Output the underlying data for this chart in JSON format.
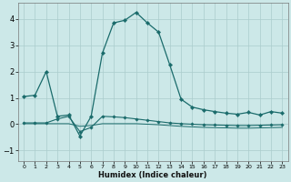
{
  "xlabel": "Humidex (Indice chaleur)",
  "xlim": [
    -0.5,
    23.5
  ],
  "ylim": [
    -1.4,
    4.6
  ],
  "yticks": [
    -1,
    0,
    1,
    2,
    3,
    4
  ],
  "xticks": [
    0,
    1,
    2,
    3,
    4,
    5,
    6,
    7,
    8,
    9,
    10,
    11,
    12,
    13,
    14,
    15,
    16,
    17,
    18,
    19,
    20,
    21,
    22,
    23
  ],
  "background_color": "#cce8e8",
  "grid_color": "#aacccc",
  "line_color": "#1a6b6b",
  "series1_x": [
    0,
    1,
    2,
    3,
    4,
    5,
    6,
    7,
    8,
    9,
    10,
    11,
    12,
    13,
    14,
    15,
    16,
    17,
    18,
    19,
    20,
    21,
    22,
    23
  ],
  "series1_y": [
    1.05,
    1.1,
    2.0,
    0.3,
    0.35,
    -0.45,
    0.3,
    2.7,
    3.85,
    3.95,
    4.25,
    3.85,
    3.5,
    2.25,
    0.95,
    0.65,
    0.55,
    0.48,
    0.42,
    0.38,
    0.45,
    0.35,
    0.48,
    0.42
  ],
  "series2_x": [
    0,
    1,
    2,
    3,
    4,
    5,
    6,
    7,
    8,
    9,
    10,
    11,
    12,
    13,
    14,
    15,
    16,
    17,
    18,
    19,
    20,
    21,
    22,
    23
  ],
  "series2_y": [
    0.05,
    0.05,
    0.05,
    0.2,
    0.3,
    -0.28,
    -0.12,
    0.3,
    0.28,
    0.25,
    0.2,
    0.15,
    0.1,
    0.05,
    0.02,
    0.0,
    -0.02,
    -0.03,
    -0.04,
    -0.05,
    -0.05,
    -0.04,
    -0.03,
    -0.02
  ],
  "series3_x": [
    0,
    1,
    2,
    3,
    4,
    5,
    6,
    7,
    8,
    9,
    10,
    11,
    12,
    13,
    14,
    15,
    16,
    17,
    18,
    19,
    20,
    21,
    22,
    23
  ],
  "series3_y": [
    0.02,
    0.02,
    0.02,
    0.02,
    0.02,
    -0.08,
    -0.05,
    0.02,
    0.02,
    0.02,
    0.02,
    0.0,
    -0.02,
    -0.05,
    -0.08,
    -0.1,
    -0.12,
    -0.13,
    -0.14,
    -0.15,
    -0.15,
    -0.14,
    -0.13,
    -0.12
  ]
}
